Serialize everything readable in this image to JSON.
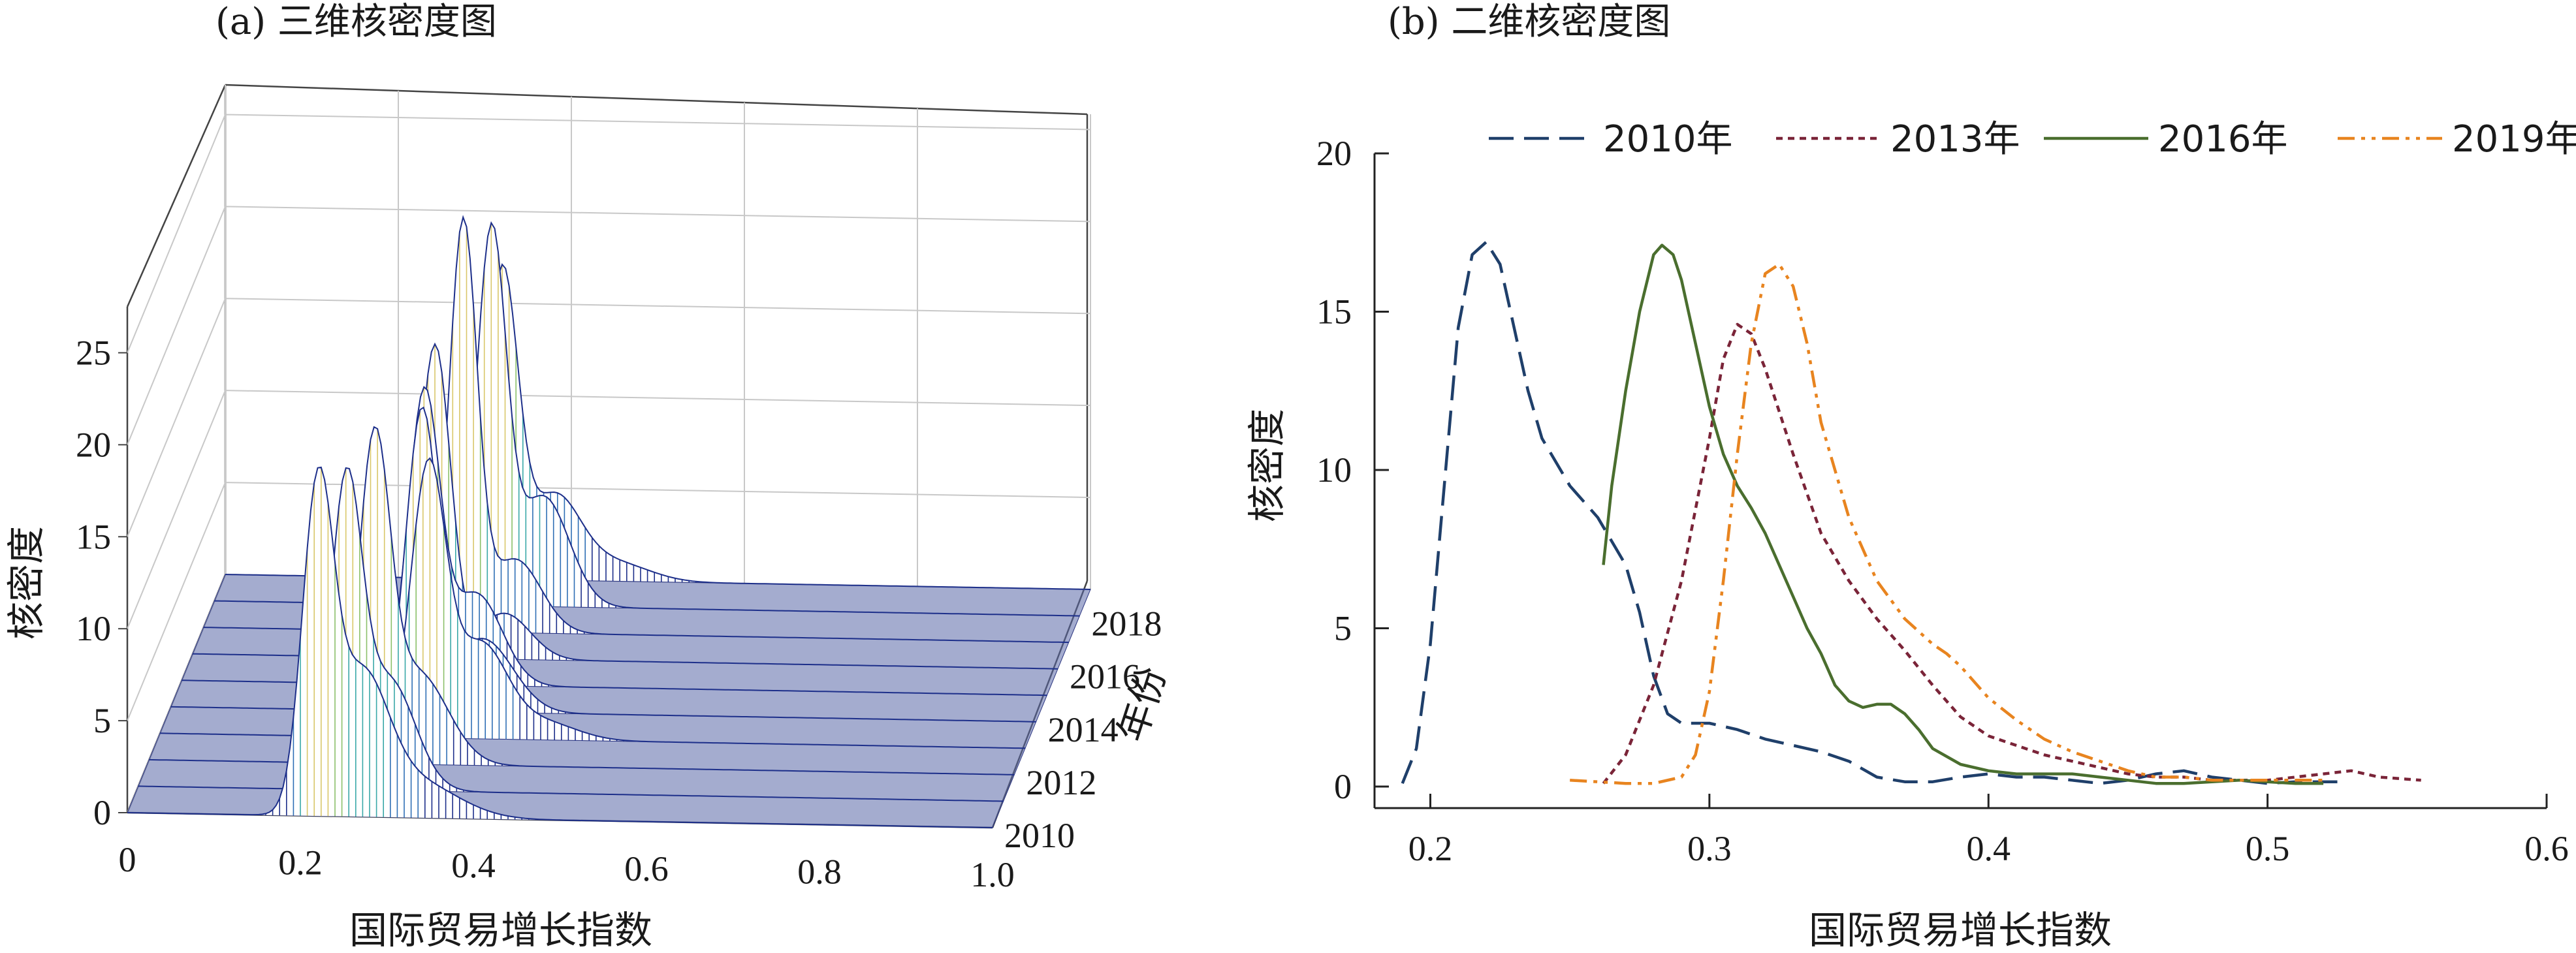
{
  "chart_data": [
    {
      "type": "3d-surface",
      "title": "(a) 三维核密度图",
      "xlabel": "国际贸易增长指数",
      "ylabel": "核密度",
      "year_axis_label": "年份",
      "x_ticks": [
        "0",
        "0.2",
        "0.4",
        "0.6",
        "0.8",
        "1.0"
      ],
      "z_ticks": [
        "0",
        "5",
        "10",
        "15",
        "20",
        "25"
      ],
      "year_ticks": [
        "2010",
        "2012",
        "2014",
        "2016",
        "2018"
      ],
      "xlim": [
        0,
        1.0
      ],
      "zlim": [
        0,
        25
      ],
      "years": [
        2010,
        2011,
        2012,
        2013,
        2014,
        2015,
        2016,
        2017,
        2018,
        2019
      ],
      "series": [
        {
          "year": 2010,
          "peaks": [
            [
              0.22,
              17.0,
              0.018
            ],
            [
              0.27,
              7.0,
              0.03
            ],
            [
              0.33,
              2.0,
              0.05
            ]
          ]
        },
        {
          "year": 2011,
          "peaks": [
            [
              0.24,
              16.0,
              0.018
            ],
            [
              0.29,
              6.0,
              0.03
            ]
          ]
        },
        {
          "year": 2012,
          "peaks": [
            [
              0.26,
              16.5,
              0.018
            ],
            [
              0.31,
              5.0,
              0.035
            ]
          ]
        },
        {
          "year": 2013,
          "peaks": [
            [
              0.31,
              14.5,
              0.02
            ],
            [
              0.37,
              5.0,
              0.03
            ],
            [
              0.44,
              1.0,
              0.04
            ]
          ]
        },
        {
          "year": 2014,
          "peaks": [
            [
              0.29,
              16.0,
              0.018
            ],
            [
              0.36,
              4.0,
              0.035
            ]
          ]
        },
        {
          "year": 2015,
          "peaks": [
            [
              0.28,
              15.5,
              0.018
            ],
            [
              0.34,
              5.0,
              0.03
            ]
          ]
        },
        {
          "year": 2016,
          "peaks": [
            [
              0.28,
              17.0,
              0.018
            ],
            [
              0.36,
              2.5,
              0.03
            ]
          ]
        },
        {
          "year": 2017,
          "peaks": [
            [
              0.3,
              22.0,
              0.016
            ],
            [
              0.36,
              4.0,
              0.03
            ]
          ]
        },
        {
          "year": 2018,
          "peaks": [
            [
              0.32,
              20.0,
              0.017
            ],
            [
              0.38,
              6.0,
              0.03
            ]
          ]
        },
        {
          "year": 2019,
          "peaks": [
            [
              0.32,
              16.5,
              0.018
            ],
            [
              0.38,
              4.5,
              0.03
            ],
            [
              0.45,
              1.0,
              0.04
            ]
          ]
        }
      ]
    },
    {
      "type": "line",
      "title": "(b) 二维核密度图",
      "xlabel": "国际贸易增长指数",
      "ylabel": "核密度",
      "xlim": [
        0.18,
        0.6
      ],
      "ylim": [
        -0.5,
        20
      ],
      "x_ticks": [
        0.2,
        0.3,
        0.4,
        0.5,
        0.6
      ],
      "y_ticks": [
        0,
        5,
        10,
        15,
        20
      ],
      "legend_position": "top",
      "series": [
        {
          "name": "2010年",
          "color": "#1f3f6a",
          "dash": "38,16",
          "points": [
            [
              0.19,
              0.1
            ],
            [
              0.195,
              1.2
            ],
            [
              0.2,
              4.5
            ],
            [
              0.205,
              9.5
            ],
            [
              0.21,
              14.5
            ],
            [
              0.215,
              16.8
            ],
            [
              0.22,
              17.2
            ],
            [
              0.225,
              16.5
            ],
            [
              0.23,
              14.5
            ],
            [
              0.235,
              12.5
            ],
            [
              0.24,
              11.0
            ],
            [
              0.25,
              9.5
            ],
            [
              0.26,
              8.5
            ],
            [
              0.27,
              7.0
            ],
            [
              0.275,
              5.5
            ],
            [
              0.28,
              3.5
            ],
            [
              0.285,
              2.3
            ],
            [
              0.29,
              2.0
            ],
            [
              0.3,
              2.0
            ],
            [
              0.31,
              1.8
            ],
            [
              0.32,
              1.5
            ],
            [
              0.33,
              1.3
            ],
            [
              0.34,
              1.1
            ],
            [
              0.35,
              0.8
            ],
            [
              0.36,
              0.3
            ],
            [
              0.37,
              0.15
            ],
            [
              0.38,
              0.15
            ],
            [
              0.39,
              0.3
            ],
            [
              0.4,
              0.4
            ],
            [
              0.41,
              0.3
            ],
            [
              0.42,
              0.3
            ],
            [
              0.43,
              0.2
            ],
            [
              0.44,
              0.1
            ],
            [
              0.45,
              0.2
            ],
            [
              0.46,
              0.4
            ],
            [
              0.47,
              0.5
            ],
            [
              0.48,
              0.3
            ],
            [
              0.49,
              0.2
            ],
            [
              0.5,
              0.1
            ],
            [
              0.51,
              0.15
            ],
            [
              0.52,
              0.15
            ],
            [
              0.525,
              0.15
            ]
          ]
        },
        {
          "name": "2013年",
          "color": "#7a2438",
          "dash": "10,8",
          "points": [
            [
              0.262,
              0.1
            ],
            [
              0.27,
              1.0
            ],
            [
              0.28,
              3.2
            ],
            [
              0.29,
              6.5
            ],
            [
              0.3,
              11.0
            ],
            [
              0.305,
              13.5
            ],
            [
              0.31,
              14.6
            ],
            [
              0.315,
              14.3
            ],
            [
              0.32,
              13.2
            ],
            [
              0.33,
              10.5
            ],
            [
              0.34,
              8.0
            ],
            [
              0.35,
              6.5
            ],
            [
              0.36,
              5.3
            ],
            [
              0.37,
              4.3
            ],
            [
              0.38,
              3.2
            ],
            [
              0.39,
              2.2
            ],
            [
              0.4,
              1.6
            ],
            [
              0.41,
              1.3
            ],
            [
              0.42,
              1.0
            ],
            [
              0.43,
              0.8
            ],
            [
              0.44,
              0.6
            ],
            [
              0.45,
              0.4
            ],
            [
              0.46,
              0.3
            ],
            [
              0.47,
              0.3
            ],
            [
              0.48,
              0.2
            ],
            [
              0.49,
              0.2
            ],
            [
              0.5,
              0.2
            ],
            [
              0.51,
              0.3
            ],
            [
              0.52,
              0.4
            ],
            [
              0.53,
              0.5
            ],
            [
              0.54,
              0.3
            ],
            [
              0.555,
              0.2
            ]
          ]
        },
        {
          "name": "2016年",
          "color": "#4a6e2e",
          "dash": "",
          "points": [
            [
              0.262,
              7.0
            ],
            [
              0.265,
              9.5
            ],
            [
              0.27,
              12.5
            ],
            [
              0.275,
              15.0
            ],
            [
              0.28,
              16.8
            ],
            [
              0.283,
              17.1
            ],
            [
              0.287,
              16.8
            ],
            [
              0.29,
              16.0
            ],
            [
              0.295,
              14.0
            ],
            [
              0.3,
              12.0
            ],
            [
              0.305,
              10.5
            ],
            [
              0.31,
              9.5
            ],
            [
              0.315,
              8.8
            ],
            [
              0.32,
              8.0
            ],
            [
              0.325,
              7.0
            ],
            [
              0.33,
              6.0
            ],
            [
              0.335,
              5.0
            ],
            [
              0.34,
              4.2
            ],
            [
              0.345,
              3.2
            ],
            [
              0.35,
              2.7
            ],
            [
              0.355,
              2.5
            ],
            [
              0.36,
              2.6
            ],
            [
              0.365,
              2.6
            ],
            [
              0.37,
              2.3
            ],
            [
              0.375,
              1.8
            ],
            [
              0.38,
              1.2
            ],
            [
              0.39,
              0.7
            ],
            [
              0.4,
              0.5
            ],
            [
              0.41,
              0.4
            ],
            [
              0.42,
              0.4
            ],
            [
              0.43,
              0.4
            ],
            [
              0.44,
              0.3
            ],
            [
              0.45,
              0.2
            ],
            [
              0.46,
              0.1
            ],
            [
              0.47,
              0.1
            ],
            [
              0.48,
              0.15
            ],
            [
              0.49,
              0.2
            ],
            [
              0.5,
              0.15
            ],
            [
              0.51,
              0.1
            ],
            [
              0.52,
              0.1
            ]
          ]
        },
        {
          "name": "2019年",
          "color": "#e8841f",
          "dash": "26,10,6,10,6,10",
          "points": [
            [
              0.25,
              0.2
            ],
            [
              0.26,
              0.15
            ],
            [
              0.27,
              0.1
            ],
            [
              0.28,
              0.1
            ],
            [
              0.29,
              0.3
            ],
            [
              0.295,
              1.0
            ],
            [
              0.3,
              3.0
            ],
            [
              0.305,
              6.5
            ],
            [
              0.31,
              10.5
            ],
            [
              0.315,
              14.0
            ],
            [
              0.32,
              16.2
            ],
            [
              0.325,
              16.5
            ],
            [
              0.33,
              15.8
            ],
            [
              0.335,
              14.0
            ],
            [
              0.34,
              11.5
            ],
            [
              0.35,
              8.5
            ],
            [
              0.36,
              6.5
            ],
            [
              0.37,
              5.3
            ],
            [
              0.38,
              4.5
            ],
            [
              0.385,
              4.2
            ],
            [
              0.39,
              3.8
            ],
            [
              0.4,
              2.8
            ],
            [
              0.41,
              2.1
            ],
            [
              0.42,
              1.5
            ],
            [
              0.43,
              1.1
            ],
            [
              0.44,
              0.8
            ],
            [
              0.45,
              0.5
            ],
            [
              0.46,
              0.3
            ],
            [
              0.47,
              0.3
            ],
            [
              0.48,
              0.2
            ],
            [
              0.49,
              0.2
            ],
            [
              0.5,
              0.2
            ],
            [
              0.51,
              0.2
            ],
            [
              0.52,
              0.2
            ]
          ]
        }
      ]
    }
  ]
}
